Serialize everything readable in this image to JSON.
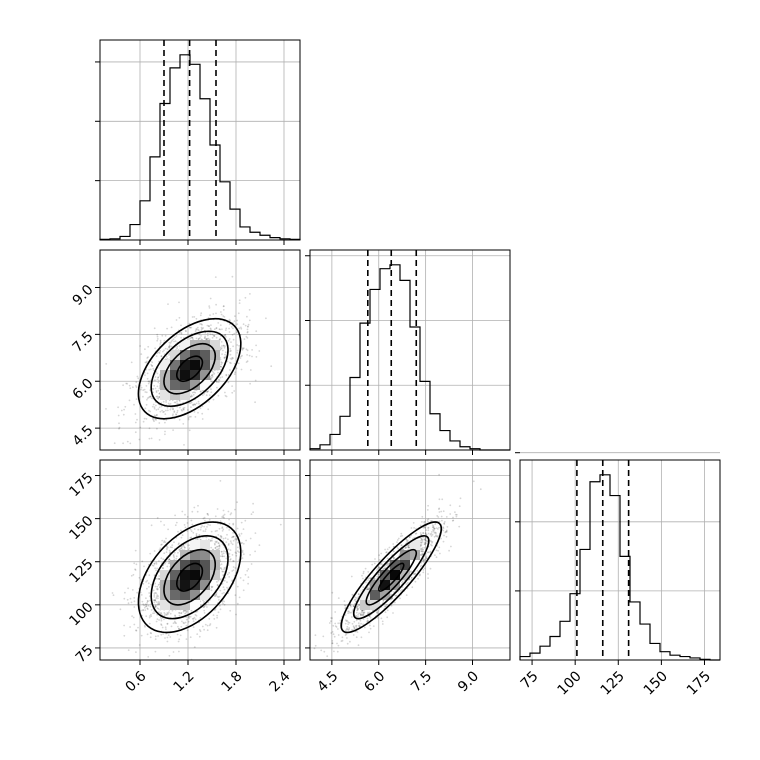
{
  "chart_data": {
    "type": "corner",
    "grid": true,
    "parameters": [
      {
        "range": [
          0.1,
          2.6
        ],
        "ticks": [
          0.6,
          1.2,
          1.8,
          2.4
        ],
        "tick_labels": [
          "0.6",
          "1.2",
          "1.8",
          "2.4"
        ],
        "quantiles": [
          0.9,
          1.22,
          1.55
        ],
        "hist_bins": [
          0.1,
          0.225,
          0.35,
          0.475,
          0.6,
          0.725,
          0.85,
          0.975,
          1.1,
          1.225,
          1.35,
          1.475,
          1.6,
          1.725,
          1.85,
          1.975,
          2.1,
          2.225,
          2.35,
          2.475,
          2.6
        ],
        "hist_counts": [
          1,
          2,
          6,
          26,
          66,
          140,
          230,
          290,
          312,
          296,
          238,
          160,
          98,
          52,
          22,
          13,
          8,
          4,
          2,
          1
        ],
        "hist_ticks": [
          100,
          200,
          300
        ]
      },
      {
        "range": [
          3.8,
          10.2
        ],
        "ticks": [
          4.5,
          6.0,
          7.5,
          9.0
        ],
        "tick_labels": [
          "4.5",
          "6.0",
          "7.5",
          "9.0"
        ],
        "quantiles": [
          5.65,
          6.4,
          7.2
        ],
        "hist_bins": [
          3.8,
          4.12,
          4.44,
          4.76,
          5.08,
          5.4,
          5.72,
          6.04,
          6.36,
          6.68,
          7.0,
          7.32,
          7.64,
          7.96,
          8.28,
          8.6,
          8.92,
          9.24,
          9.56,
          9.88,
          10.2
        ],
        "hist_counts": [
          2,
          8,
          24,
          52,
          112,
          196,
          248,
          280,
          286,
          262,
          190,
          106,
          56,
          30,
          14,
          5,
          2,
          0,
          0,
          0
        ],
        "hist_ticks": [
          100,
          200,
          300
        ]
      },
      {
        "range": [
          68,
          184
        ],
        "ticks": [
          75,
          100,
          125,
          150,
          175
        ],
        "tick_labels": [
          "75",
          "100",
          "125",
          "150",
          "175"
        ],
        "quantiles": [
          101,
          116,
          131
        ],
        "hist_bins": [
          68,
          73.8,
          79.6,
          85.4,
          91.2,
          97,
          102.8,
          108.6,
          114.4,
          120.2,
          126,
          131.8,
          137.6,
          143.4,
          149.2,
          155,
          160.8,
          166.6,
          172.4,
          178.2,
          184
        ],
        "hist_counts": [
          5,
          10,
          20,
          34,
          56,
          96,
          160,
          258,
          268,
          238,
          150,
          84,
          52,
          24,
          12,
          7,
          5,
          3,
          1,
          0
        ],
        "hist_ticks": [
          100,
          200,
          300
        ]
      }
    ],
    "pairs": [
      {
        "x_param": 0,
        "y_param": 1,
        "mean": [
          1.22,
          6.4
        ],
        "sd": [
          0.32,
          0.8
        ],
        "rho": 0.5
      },
      {
        "x_param": 0,
        "y_param": 2,
        "mean": [
          1.22,
          116
        ],
        "sd": [
          0.32,
          16
        ],
        "rho": 0.45
      },
      {
        "x_param": 1,
        "y_param": 2,
        "mean": [
          6.4,
          116
        ],
        "sd": [
          0.8,
          16
        ],
        "rho": 0.88
      }
    ]
  }
}
